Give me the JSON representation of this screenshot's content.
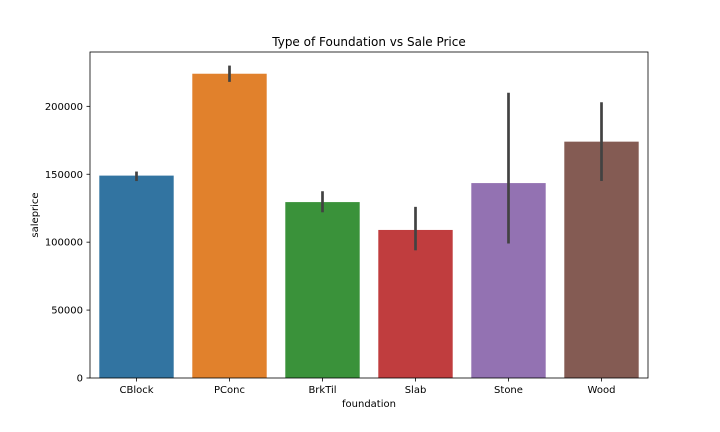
{
  "chart_data": {
    "type": "bar",
    "title": "Type of Foundation vs Sale Price",
    "xlabel": "foundation",
    "ylabel": "saleprice",
    "categories": [
      "CBlock",
      "PConc",
      "BrkTil",
      "Slab",
      "Stone",
      "Wood"
    ],
    "values": [
      149000,
      224000,
      129500,
      109000,
      143500,
      174000
    ],
    "error_bars": [
      [
        145000,
        152000
      ],
      [
        218000,
        230000
      ],
      [
        122000,
        137500
      ],
      [
        94000,
        126000
      ],
      [
        99000,
        210000
      ],
      [
        145000,
        203000
      ]
    ],
    "ylim": [
      0,
      240000
    ],
    "yticks": [
      0,
      50000,
      100000,
      150000,
      200000
    ],
    "ytick_labels": [
      "0",
      "50000",
      "100000",
      "150000",
      "200000"
    ],
    "colors": [
      "#3274a1",
      "#e1812c",
      "#3a923a",
      "#c03d3e",
      "#9372b2",
      "#845b53"
    ],
    "error_color": "#424242",
    "grid": false,
    "legend": "none"
  }
}
